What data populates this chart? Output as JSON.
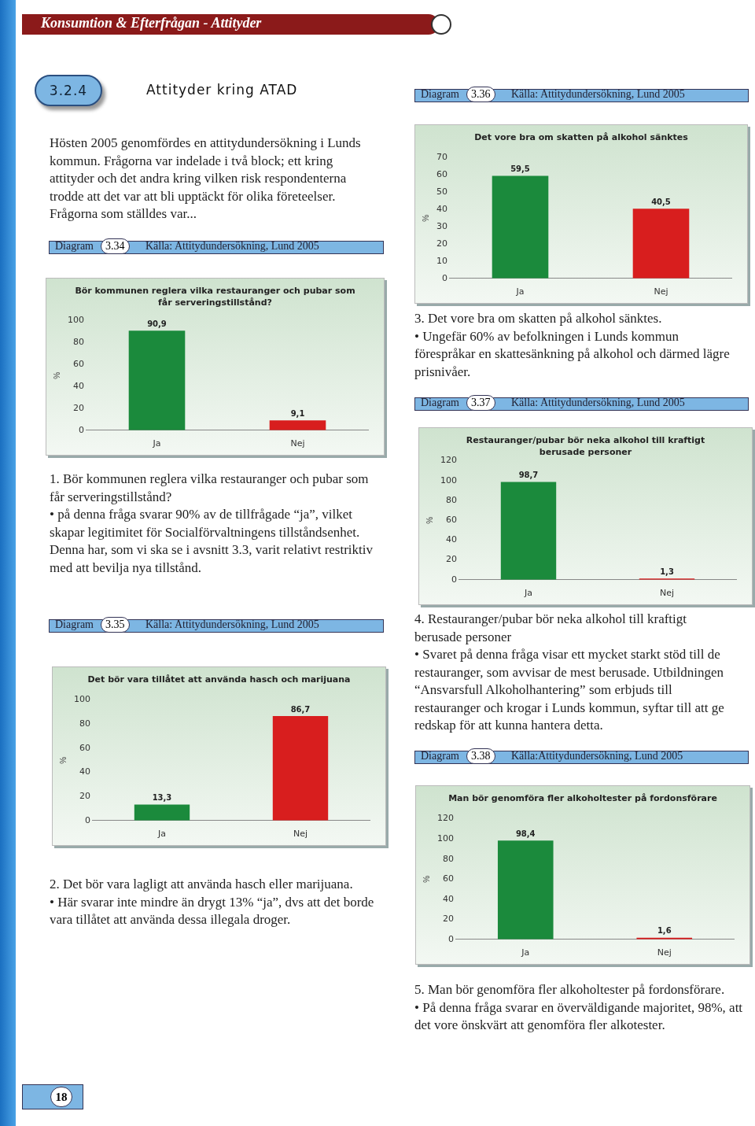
{
  "chart_data": [
    {
      "type": "bar",
      "title": "Bör kommunen reglera vilka restauranger och pubar som får serveringstillstånd?",
      "ylabel": "%",
      "categories": [
        "Ja",
        "Nej"
      ],
      "values": [
        90.9,
        9.1
      ],
      "colors": [
        "#1b8a3c",
        "#d81e1e"
      ],
      "value_labels": [
        "90,9",
        "9,1"
      ],
      "ylim": [
        0,
        100
      ],
      "yticks": [
        0,
        20,
        40,
        60,
        80,
        100
      ],
      "annotations": [
        "Konsumtion & Efterfrågan - Attityder",
        "3.2.4",
        "Attityder kring ATAD",
        "Hösten 2005 genomfördes en attitydundersökning i Lunds kommun. Frågorna var indelade i två block; ett kring attityder och det andra kring vilken risk respondenterna trodde att det var att bli upptäckt för olika företeelser. Frågorna som ställdes var...",
        "Diagram",
        "3.34",
        "Källa: Attitydundersökning, Lund 2005",
        "1. Bör kommunen reglera vilka restauranger och pubar som får serveringstillstånd?\n• på denna fråga svarar 90% av de tillfrågade “ja”, vilket skapar legitimitet för Socialförvaltningens tillståndsenhet. Denna har, som vi ska se i avsnitt 3.3, varit relativt restriktiv med att bevilja nya tillstånd.",
        "18"
      ]
    },
    {
      "type": "bar",
      "title": "Det bör vara tillåtet att använda hasch och marijuana",
      "ylabel": "%",
      "categories": [
        "Ja",
        "Nej"
      ],
      "values": [
        13.3,
        86.7
      ],
      "colors": [
        "#1b8a3c",
        "#d81e1e"
      ],
      "value_labels": [
        "13,3",
        "86,7"
      ],
      "ylim": [
        0,
        100
      ],
      "yticks": [
        0,
        20,
        40,
        60,
        80,
        100
      ],
      "annotations": [
        "Diagram",
        "3.35",
        "Källa: Attitydundersökning, Lund 2005",
        "2. Det bör vara lagligt att använda hasch eller marijuana.\n• Här svarar inte mindre än drygt 13% “ja”, dvs att det borde vara tillåtet att använda dessa illegala droger."
      ]
    },
    {
      "type": "bar",
      "title": "Det vore bra om skatten på alkohol sänktes",
      "ylabel": "%",
      "categories": [
        "Ja",
        "Nej"
      ],
      "values": [
        59.5,
        40.5
      ],
      "colors": [
        "#1b8a3c",
        "#d81e1e"
      ],
      "value_labels": [
        "59,5",
        "40,5"
      ],
      "ylim": [
        0,
        70
      ],
      "yticks": [
        0,
        10,
        20,
        30,
        40,
        50,
        60,
        70
      ],
      "annotations": [
        "Diagram",
        "3.36",
        "Källa: Attitydundersökning, Lund 2005",
        "3. Det vore bra om skatten på alkohol sänktes.\n• Ungefär 60% av befolkningen i  Lunds kommun förespråkar en skattesänkning på alkohol och därmed lägre prisnivåer."
      ]
    },
    {
      "type": "bar",
      "title": "Restauranger/pubar bör neka alkohol till kraftigt berusade personer",
      "ylabel": "%",
      "categories": [
        "Ja",
        "Nej"
      ],
      "values": [
        98.7,
        1.3
      ],
      "colors": [
        "#1b8a3c",
        "#d81e1e"
      ],
      "value_labels": [
        "98,7",
        "1,3"
      ],
      "ylim": [
        0,
        120
      ],
      "yticks": [
        0,
        20,
        40,
        60,
        80,
        100,
        120
      ],
      "annotations": [
        "Diagram",
        "3.37",
        "Källa: Attitydundersökning, Lund 2005",
        "4. Restauranger/pubar bör neka alkohol till kraftigt berusade personer\n• Svaret på denna fråga visar ett mycket starkt stöd till de restauranger, som avvisar de mest berusade. Utbildningen “Ansvarsfull Alkoholhantering” som erbjuds till restauranger och krogar i Lunds kommun, syftar till att ge redskap för att kunna hantera detta."
      ]
    },
    {
      "type": "bar",
      "title": "Man bör genomföra fler alkoholtester på fordonsförare",
      "ylabel": "%",
      "categories": [
        "Ja",
        "Nej"
      ],
      "values": [
        98.4,
        1.6
      ],
      "colors": [
        "#1b8a3c",
        "#d81e1e"
      ],
      "value_labels": [
        "98,4",
        "1,6"
      ],
      "ylim": [
        0,
        120
      ],
      "yticks": [
        0,
        20,
        40,
        60,
        80,
        100,
        120
      ],
      "annotations": [
        "Diagram",
        "3.38",
        "Källa:Attitydundersökning, Lund 2005",
        "5. Man bör genomföra fler alkoholtester på fordonsförare.\n• På denna fråga svarar en överväldigande majoritet, 98%, att det vore önskvärt att genomföra fler alkotester."
      ]
    }
  ]
}
